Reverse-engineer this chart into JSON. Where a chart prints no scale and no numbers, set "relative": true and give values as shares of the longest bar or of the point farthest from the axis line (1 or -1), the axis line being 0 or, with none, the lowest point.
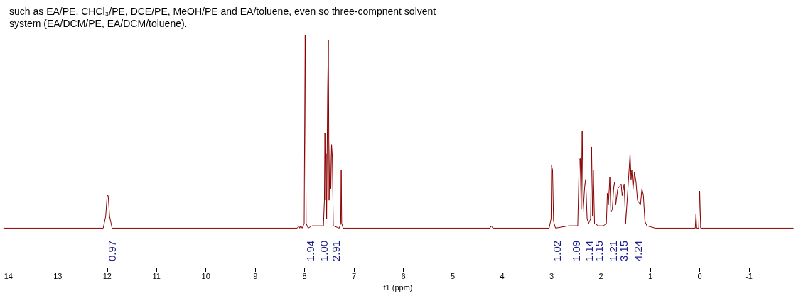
{
  "chart_data": {
    "type": "line",
    "relative": true,
    "title": "such as EA/PE, CHCl₃/PE, DCE/PE, MeOH/PE and EA/toluene, even so three-compnent solvent system (EA/DCM/PE, EA/DCM/toluene).",
    "xlabel": "f1 (ppm)",
    "xlim": [
      14.17,
      -1.95
    ],
    "xticks": [
      14,
      13,
      12,
      11,
      10,
      9,
      8,
      7,
      6,
      5,
      4,
      3,
      2,
      1,
      0,
      -1
    ],
    "grid": false,
    "marker": "none",
    "line_style": "solid",
    "x": [
      14.1,
      12.08,
      12.03,
      12.0,
      11.98,
      11.95,
      11.9,
      8.15,
      8.12,
      8.1,
      8.08,
      8.05,
      8.01,
      7.99,
      7.97,
      7.93,
      7.85,
      7.8,
      7.75,
      7.62,
      7.6,
      7.59,
      7.575,
      7.565,
      7.555,
      7.535,
      7.52,
      7.505,
      7.485,
      7.47,
      7.455,
      7.44,
      7.42,
      7.3,
      7.27,
      7.26,
      7.25,
      7.22,
      4.25,
      4.22,
      4.19,
      3.05,
      3.01,
      3.0,
      2.98,
      2.96,
      2.92,
      2.65,
      2.47,
      2.44,
      2.42,
      2.4,
      2.38,
      2.36,
      2.33,
      2.31,
      2.28,
      2.25,
      2.21,
      2.19,
      2.17,
      2.155,
      2.13,
      2.05,
      1.95,
      1.89,
      1.87,
      1.85,
      1.82,
      1.8,
      1.77,
      1.74,
      1.72,
      1.7,
      1.66,
      1.62,
      1.59,
      1.57,
      1.53,
      1.5,
      1.46,
      1.43,
      1.41,
      1.39,
      1.375,
      1.35,
      1.32,
      1.29,
      1.26,
      1.23,
      1.2,
      1.17,
      1.14,
      1.11,
      1.07,
      0.9,
      0.09,
      0.075,
      0.06,
      0.02,
      0.0,
      -0.02,
      -1.9
    ],
    "series": [
      {
        "color": "#8b0000",
        "values": [
          0.17,
          0.17,
          0.22,
          0.31,
          0.31,
          0.22,
          0.17,
          0.17,
          0.18,
          0.17,
          0.18,
          0.17,
          0.19,
          1.0,
          0.19,
          0.17,
          0.18,
          0.18,
          0.18,
          0.18,
          0.29,
          0.58,
          0.29,
          0.49,
          0.21,
          0.76,
          0.98,
          0.29,
          0.54,
          0.34,
          0.53,
          0.48,
          0.18,
          0.17,
          0.19,
          0.42,
          0.19,
          0.17,
          0.17,
          0.18,
          0.17,
          0.17,
          0.21,
          0.44,
          0.42,
          0.2,
          0.17,
          0.18,
          0.18,
          0.46,
          0.47,
          0.25,
          0.59,
          0.24,
          0.35,
          0.38,
          0.21,
          0.19,
          0.21,
          0.52,
          0.22,
          0.42,
          0.19,
          0.18,
          0.18,
          0.19,
          0.32,
          0.27,
          0.39,
          0.24,
          0.25,
          0.35,
          0.37,
          0.27,
          0.34,
          0.35,
          0.36,
          0.31,
          0.36,
          0.19,
          0.32,
          0.42,
          0.49,
          0.38,
          0.42,
          0.34,
          0.41,
          0.37,
          0.29,
          0.28,
          0.27,
          0.34,
          0.31,
          0.2,
          0.18,
          0.17,
          0.17,
          0.23,
          0.17,
          0.17,
          0.33,
          0.17,
          0.17
        ]
      }
    ],
    "annotations": [
      "0.97",
      "1.94",
      "1.00",
      "2.91",
      "1.02",
      "1.09",
      "1.14",
      "1.15",
      "1.21",
      "3.15",
      "4.24"
    ]
  }
}
